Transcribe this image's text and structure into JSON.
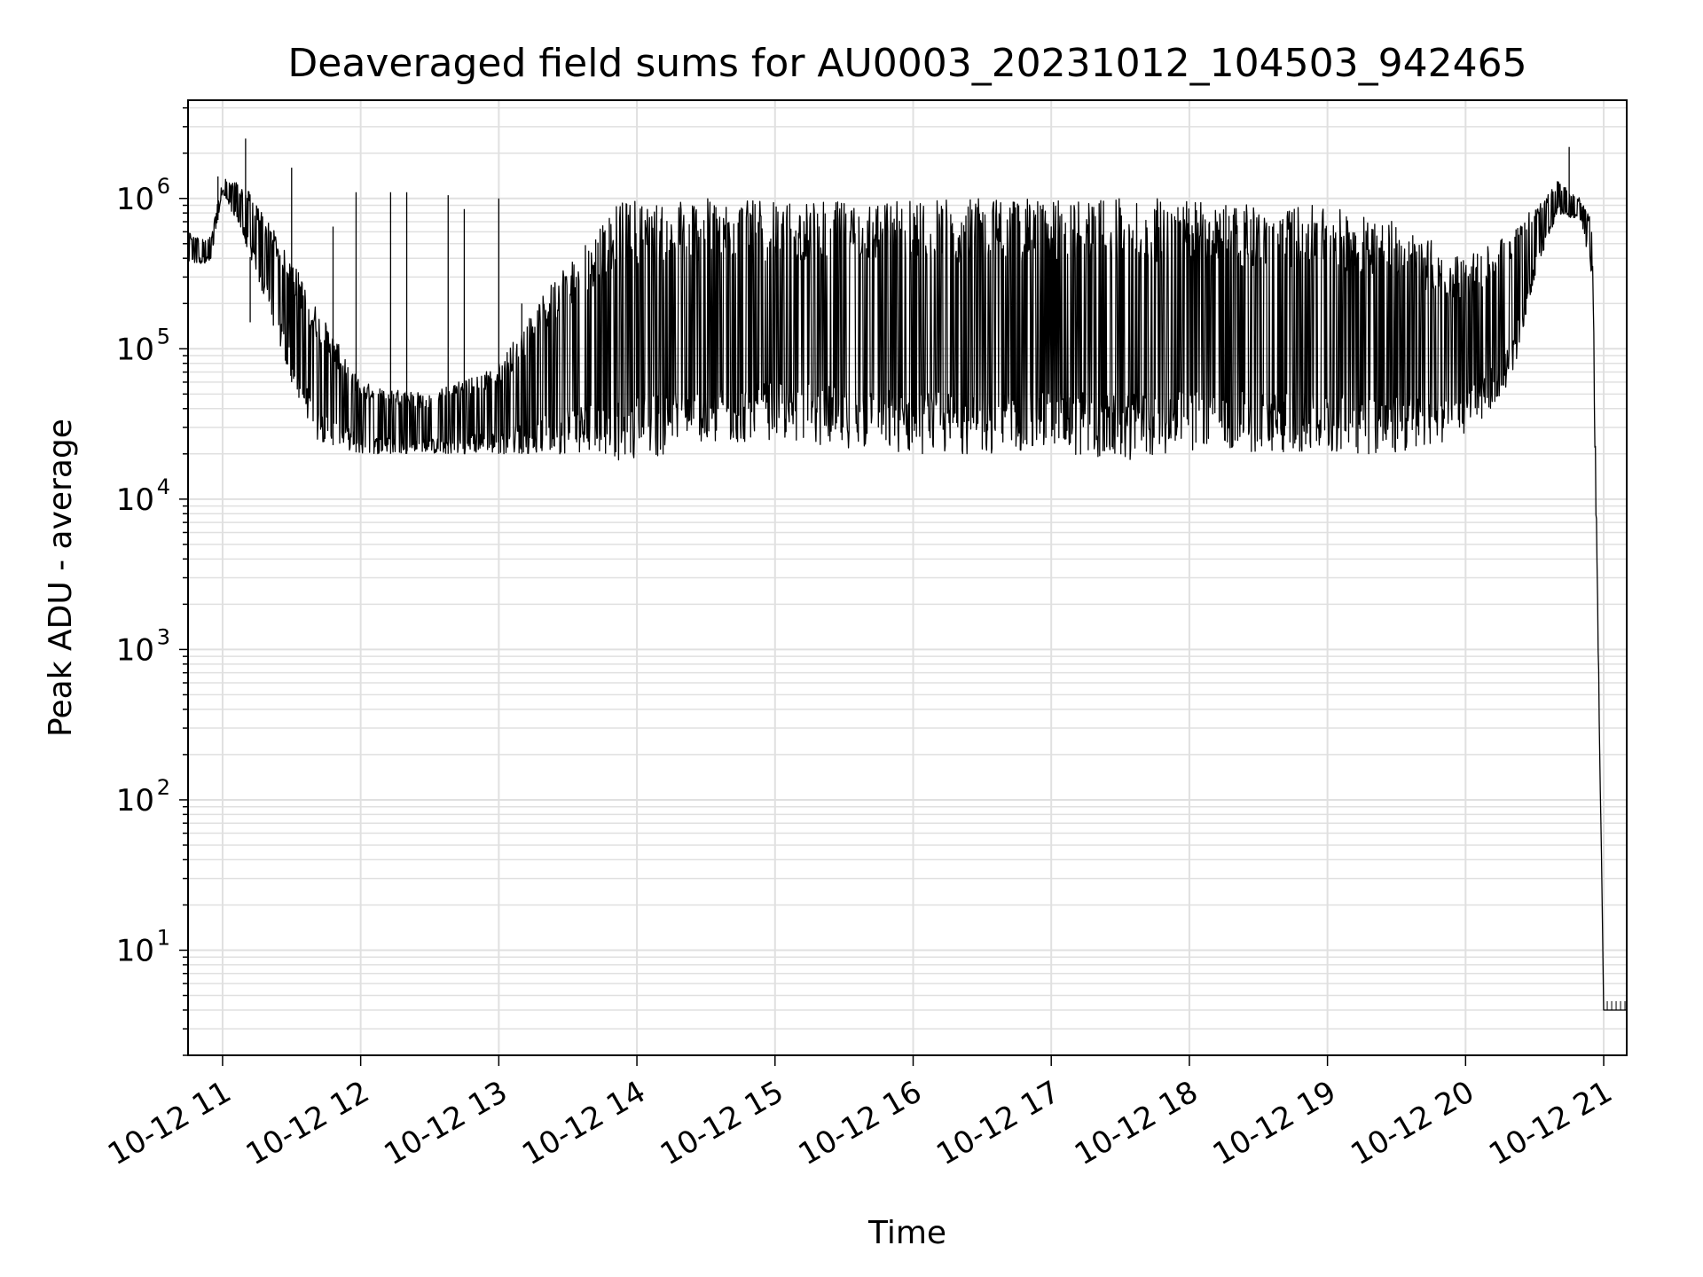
{
  "chart_data": {
    "type": "line",
    "title": "Deaveraged field sums for AU0003_20231012_104503_942465",
    "xlabel": "Time",
    "ylabel": "Peak ADU - average",
    "yscale": "log",
    "ylim": [
      2,
      4500000
    ],
    "xlim": [
      "2023-10-12 10:45",
      "2023-10-12 21:10"
    ],
    "grid": true,
    "line_color": "#000000",
    "grid_color": "#e0e0e0",
    "x_ticks": [
      {
        "value": "2023-10-12 11:00",
        "label": "10-12 11"
      },
      {
        "value": "2023-10-12 12:00",
        "label": "10-12 12"
      },
      {
        "value": "2023-10-12 13:00",
        "label": "10-12 13"
      },
      {
        "value": "2023-10-12 14:00",
        "label": "10-12 14"
      },
      {
        "value": "2023-10-12 15:00",
        "label": "10-12 15"
      },
      {
        "value": "2023-10-12 16:00",
        "label": "10-12 16"
      },
      {
        "value": "2023-10-12 17:00",
        "label": "10-12 17"
      },
      {
        "value": "2023-10-12 18:00",
        "label": "10-12 18"
      },
      {
        "value": "2023-10-12 19:00",
        "label": "10-12 19"
      },
      {
        "value": "2023-10-12 20:00",
        "label": "10-12 20"
      },
      {
        "value": "2023-10-12 21:00",
        "label": "10-12 21"
      }
    ],
    "y_ticks": [
      {
        "value": 10,
        "base": "10",
        "exp": "1"
      },
      {
        "value": 100,
        "base": "10",
        "exp": "2"
      },
      {
        "value": 1000,
        "base": "10",
        "exp": "3"
      },
      {
        "value": 10000,
        "base": "10",
        "exp": "4"
      },
      {
        "value": 100000,
        "base": "10",
        "exp": "5"
      },
      {
        "value": 1000000,
        "base": "10",
        "exp": "6"
      }
    ],
    "envelope": {
      "description_of_series": "single noisy series; upper and lower envelope sampled at times",
      "times": [
        "2023-10-12 10:45",
        "2023-10-12 10:55",
        "2023-10-12 11:00",
        "2023-10-12 11:10",
        "2023-10-12 11:20",
        "2023-10-12 11:30",
        "2023-10-12 11:40",
        "2023-10-12 12:00",
        "2023-10-12 12:30",
        "2023-10-12 13:00",
        "2023-10-12 13:30",
        "2023-10-12 13:50",
        "2023-10-12 14:00",
        "2023-10-12 14:30",
        "2023-10-12 15:00",
        "2023-10-12 15:30",
        "2023-10-12 16:00",
        "2023-10-12 16:30",
        "2023-10-12 17:00",
        "2023-10-12 17:30",
        "2023-10-12 18:00",
        "2023-10-12 18:30",
        "2023-10-12 19:00",
        "2023-10-12 19:30",
        "2023-10-12 20:00",
        "2023-10-12 20:20",
        "2023-10-12 20:30",
        "2023-10-12 20:40",
        "2023-10-12 20:50",
        "2023-10-12 20:55",
        "2023-10-12 21:00",
        "2023-10-12 21:10"
      ],
      "upper": [
        600000,
        550000,
        1400000,
        1200000,
        700000,
        400000,
        200000,
        60000,
        50000,
        80000,
        400000,
        900000,
        1000000,
        1000000,
        950000,
        950000,
        1000000,
        1000000,
        1000000,
        1000000,
        1000000,
        900000,
        900000,
        700000,
        400000,
        600000,
        900000,
        1300000,
        1000000,
        700000,
        4,
        4
      ],
      "lower": [
        350000,
        380000,
        1100000,
        500000,
        180000,
        60000,
        25000,
        20000,
        20000,
        20000,
        20000,
        18000,
        18000,
        22000,
        25000,
        22000,
        20000,
        20000,
        20000,
        18000,
        20000,
        20000,
        20000,
        20000,
        25000,
        60000,
        300000,
        800000,
        700000,
        300000,
        4,
        4
      ]
    },
    "spikes": [
      {
        "time": "2023-10-12 10:58",
        "value": 1400000
      },
      {
        "time": "2023-10-12 11:10",
        "value": 2500000
      },
      {
        "time": "2023-10-12 11:12",
        "value": 150000
      },
      {
        "time": "2023-10-12 11:30",
        "value": 1600000
      },
      {
        "time": "2023-10-12 11:48",
        "value": 650000
      },
      {
        "time": "2023-10-12 11:58",
        "value": 1100000
      },
      {
        "time": "2023-10-12 12:13",
        "value": 1100000
      },
      {
        "time": "2023-10-12 12:20",
        "value": 1100000
      },
      {
        "time": "2023-10-12 12:38",
        "value": 1050000
      },
      {
        "time": "2023-10-12 12:45",
        "value": 850000
      },
      {
        "time": "2023-10-12 13:00",
        "value": 1000000
      },
      {
        "time": "2023-10-12 13:10",
        "value": 200000
      },
      {
        "time": "2023-10-12 20:45",
        "value": 2200000
      }
    ],
    "tail_value": 4
  }
}
